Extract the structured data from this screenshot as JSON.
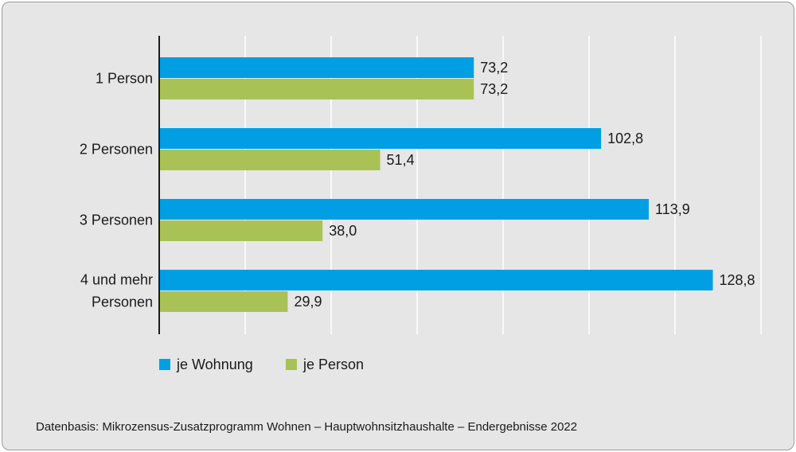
{
  "chart_data": {
    "type": "bar",
    "orientation": "horizontal",
    "categories": [
      [
        "1 Person"
      ],
      [
        "2 Personen"
      ],
      [
        "3 Personen"
      ],
      [
        "4 und mehr",
        "Personen"
      ]
    ],
    "series": [
      {
        "name": "je Wohnung",
        "color": "#009fe3",
        "values": [
          73.2,
          102.8,
          113.9,
          128.8
        ],
        "labels": [
          "73,2",
          "102,8",
          "113,9",
          "128,8"
        ]
      },
      {
        "name": "je Person",
        "color": "#a8c256",
        "values": [
          73.2,
          51.4,
          38.0,
          29.9
        ],
        "labels": [
          "73,2",
          "51,4",
          "38,0",
          "29,9"
        ]
      }
    ],
    "xlim": [
      0,
      140
    ],
    "grid_step": 20,
    "grid": true,
    "legend_placement": "bottom-left"
  },
  "source": "Datenbasis: Mikrozensus-Zusatzprogramm Wohnen – Hauptwohnsitzhaushalte – Endergebnisse 2022"
}
